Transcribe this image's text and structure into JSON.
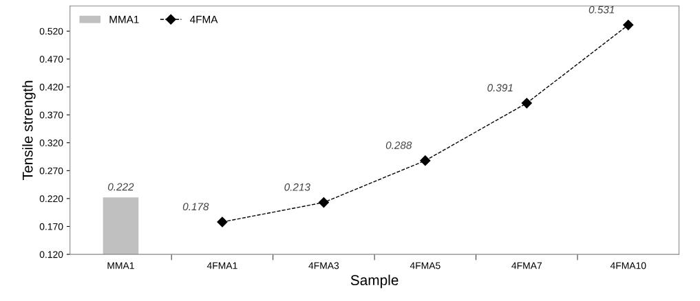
{
  "chart_data": {
    "type": "bar",
    "xlabel": "Sample",
    "ylabel": "Tensile strength",
    "categories": [
      "MMA1",
      "4FMA1",
      "4FMA3",
      "4FMA5",
      "4FMA7",
      "4FMA10"
    ],
    "series": [
      {
        "name": "MMA1",
        "color": "#c0c0c0",
        "values": [
          0.222,
          null,
          null,
          null,
          null,
          null
        ]
      },
      {
        "name": "4FMA",
        "type": "line",
        "color": "#000000",
        "marker": "diamond",
        "line_style": "dashed",
        "values": [
          null,
          0.178,
          0.213,
          0.288,
          0.391,
          0.531
        ]
      }
    ],
    "ylim": [
      0.12,
      0.565
    ],
    "yticks": [
      {
        "value": 0.12,
        "label": "0.120"
      },
      {
        "value": 0.17,
        "label": "0.170"
      },
      {
        "value": 0.22,
        "label": "0.220"
      },
      {
        "value": 0.27,
        "label": "0.270"
      },
      {
        "value": 0.32,
        "label": "0.320"
      },
      {
        "value": 0.37,
        "label": "0.370"
      },
      {
        "value": 0.42,
        "label": "0.420"
      },
      {
        "value": 0.47,
        "label": "0.470"
      },
      {
        "value": 0.52,
        "label": "0.520"
      }
    ],
    "data_labels": true,
    "grid": false,
    "legend": "top left"
  }
}
